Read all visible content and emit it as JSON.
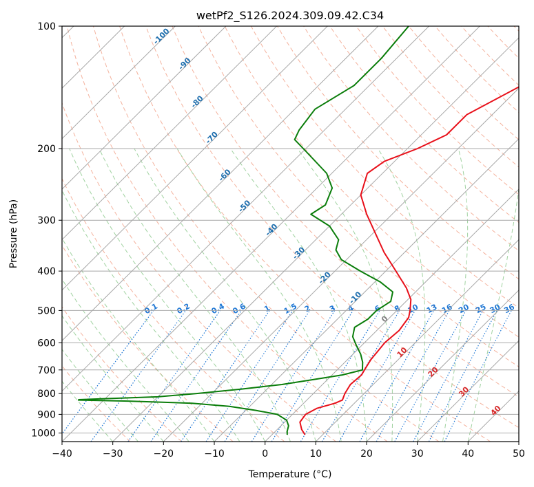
{
  "chart_data": {
    "type": "line",
    "title": "wetPf2_S126.2024.309.09.42.C34",
    "xlabel": "Temperature (°C)",
    "ylabel": "Pressure (hPa)",
    "xlim": [
      -40,
      50
    ],
    "ylim": [
      1050,
      100
    ],
    "y_scale": "log",
    "grid": true,
    "x_ticks": [
      -40,
      -30,
      -20,
      -10,
      0,
      10,
      20,
      30,
      40,
      50
    ],
    "y_ticks": [
      100,
      200,
      300,
      400,
      500,
      600,
      700,
      800,
      900,
      1000
    ],
    "skew": 35,
    "colors": {
      "temperature": "#e8101a",
      "dewpoint": "#0a7d0a",
      "isotherm": "#a8a8a8",
      "dry_adiabat": "#f2a58c",
      "moist_adiabat": "#88c788",
      "mixing_ratio": "#1f77d4",
      "freezing_label": "#808080",
      "adiabat_label": "#d62728",
      "isotherm_label": "#1f6fae"
    },
    "series": [
      {
        "id": "temperature",
        "pressure": [
          1010,
          980,
          940,
          900,
          870,
          845,
          830,
          800,
          760,
          720,
          700,
          660,
          600,
          560,
          520,
          500,
          470,
          440,
          400,
          360,
          320,
          290,
          260,
          230,
          215,
          200,
          185,
          165,
          140,
          125,
          113,
          100
        ],
        "temp": [
          6.5,
          4.8,
          3.0,
          2.6,
          3.6,
          6.2,
          7.0,
          6.2,
          5.5,
          5.8,
          5.4,
          4.6,
          4.0,
          4.4,
          3.7,
          2.6,
          0.6,
          -2.6,
          -8.0,
          -14.0,
          -20.0,
          -25.0,
          -30.0,
          -33.0,
          -32.0,
          -28.0,
          -25.0,
          -25.0,
          -20.0,
          -16.0,
          -12.5,
          -9.0
        ]
      },
      {
        "id": "dewpoint",
        "pressure": [
          1010,
          990,
          960,
          930,
          900,
          880,
          860,
          845,
          835,
          830,
          828,
          815,
          800,
          780,
          760,
          740,
          720,
          700,
          670,
          640,
          610,
          580,
          550,
          525,
          500,
          475,
          450,
          425,
          400,
          375,
          355,
          335,
          310,
          290,
          275,
          250,
          230,
          200,
          190,
          180,
          160,
          140,
          120,
          100
        ],
        "temp": [
          3.0,
          2.3,
          1.5,
          0.0,
          -3.0,
          -8.0,
          -14.0,
          -22.0,
          -35.0,
          -45.0,
          -45.0,
          -30.0,
          -23.0,
          -15.0,
          -8.0,
          -3.0,
          2.0,
          5.0,
          3.5,
          1.5,
          -1.0,
          -3.5,
          -5.0,
          -4.0,
          -4.0,
          -3.0,
          -4.5,
          -9.0,
          -15.0,
          -21.0,
          -24.0,
          -25.5,
          -30.0,
          -36.0,
          -35.0,
          -37.0,
          -41.0,
          -50.5,
          -54.0,
          -55.0,
          -56.0,
          -53.0,
          -53.0,
          -54.0
        ]
      }
    ],
    "freezing_level_label": "0",
    "isotherm_labels": [
      {
        "text": "-100",
        "pressure": 107,
        "temp": -100
      },
      {
        "text": "-90",
        "pressure": 125,
        "temp": -90
      },
      {
        "text": "-80",
        "pressure": 155,
        "temp": -80
      },
      {
        "text": "-70",
        "pressure": 190,
        "temp": -70
      },
      {
        "text": "-60",
        "pressure": 235,
        "temp": -60
      },
      {
        "text": "-50",
        "pressure": 280,
        "temp": -50
      },
      {
        "text": "-40",
        "pressure": 320,
        "temp": -40
      },
      {
        "text": "-30",
        "pressure": 365,
        "temp": -30
      },
      {
        "text": "-20",
        "pressure": 420,
        "temp": -20
      },
      {
        "text": "-10",
        "pressure": 470,
        "temp": -10
      }
    ],
    "mixing_ratio_labels": [
      "0.1",
      "0.2",
      "0.4",
      "0.6",
      "1",
      "1.5",
      "2",
      "3",
      "4",
      "6",
      "8",
      "10",
      "13",
      "16",
      "20",
      "25",
      "30",
      "36"
    ],
    "dry_adiabat_labels": [
      "10",
      "20",
      "30",
      "40"
    ]
  }
}
